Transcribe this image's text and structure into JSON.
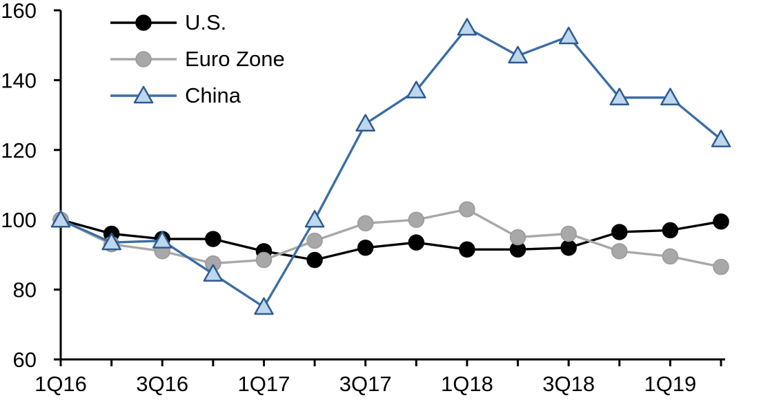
{
  "chart_data": {
    "type": "line",
    "title": "",
    "xlabel": "",
    "ylabel": "",
    "grid": false,
    "legend_position": "top-left-inside",
    "ylim": [
      60,
      160
    ],
    "yticks": [
      60,
      80,
      100,
      120,
      140,
      160
    ],
    "categories": [
      "1Q16",
      "2Q16",
      "3Q16",
      "4Q16",
      "1Q17",
      "2Q17",
      "3Q17",
      "4Q17",
      "1Q18",
      "2Q18",
      "3Q18",
      "4Q18",
      "1Q19",
      "2Q19"
    ],
    "x_tick_labels": [
      "1Q16",
      "3Q16",
      "1Q17",
      "3Q17",
      "1Q18",
      "3Q18",
      "1Q19"
    ],
    "series": [
      {
        "name": "U.S.",
        "marker": "circle",
        "color": "#000000",
        "marker_fill": "#000000",
        "marker_stroke": "#000000",
        "values": [
          100,
          96,
          94.5,
          94.5,
          91,
          88.5,
          92,
          93.5,
          91.5,
          91.5,
          92,
          96.5,
          97,
          99.5
        ]
      },
      {
        "name": "Euro Zone",
        "marker": "circle",
        "color": "#a8a8a8",
        "marker_fill": "#a8a8a8",
        "marker_stroke": "#9a9a9a",
        "values": [
          100,
          93,
          91,
          87.5,
          88.5,
          94,
          99,
          100,
          103,
          95,
          96,
          91,
          89.5,
          86.5
        ]
      },
      {
        "name": "China",
        "marker": "triangle",
        "color": "#3b6ea5",
        "marker_fill": "#bdd7ee",
        "marker_stroke": "#2e5b8f",
        "values": [
          100,
          93.5,
          94,
          84.5,
          75,
          100,
          127.5,
          137,
          155,
          147,
          152.5,
          135,
          135,
          123
        ]
      }
    ]
  }
}
